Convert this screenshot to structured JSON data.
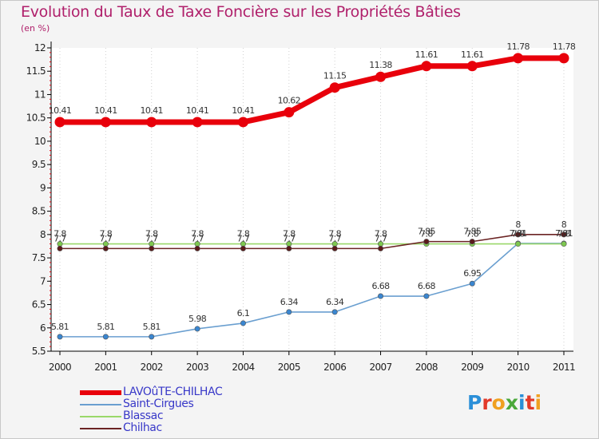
{
  "title": "Evolution du Taux de Taxe Foncière sur les Propriétés Bâties",
  "subtitle": "(en %)",
  "logo": {
    "text": "Proxiti",
    "colors": [
      "#2b8fd8",
      "#e23a2a",
      "#f0a020",
      "#4aa83a",
      "#2b8fd8",
      "#e23a2a",
      "#f0a020"
    ]
  },
  "chart_data": {
    "type": "line",
    "title": "Evolution du Taux de Taxe Foncière sur les Propriétés Bâties",
    "ylabel": "(en %)",
    "xlabel": "",
    "ylim": [
      5.5,
      12
    ],
    "yticks": [
      5.5,
      6,
      6.5,
      7,
      7.5,
      8,
      8.5,
      9,
      9.5,
      10,
      10.5,
      11,
      11.5,
      12
    ],
    "ytick_labels": [
      "5.5",
      "6",
      "6.5",
      "7",
      "7.5",
      "8",
      "8.5",
      "9",
      "9.5",
      "10",
      "10.5",
      "11",
      "11.5",
      "12"
    ],
    "categories": [
      "2000",
      "2001",
      "2002",
      "2003",
      "2004",
      "2005",
      "2006",
      "2007",
      "2008",
      "2009",
      "2010",
      "2011"
    ],
    "legend_position": "bottom-left",
    "series": [
      {
        "name": "LAVOûTE-CHILHAC",
        "color": "#e8000b",
        "fill": "#e8000b",
        "values": [
          10.41,
          10.41,
          10.41,
          10.41,
          10.41,
          10.62,
          11.15,
          11.38,
          11.61,
          11.61,
          11.78,
          11.78
        ],
        "labels": [
          "10.41",
          "10.41",
          "10.41",
          "10.41",
          "10.41",
          "10.62",
          "11.15",
          "11.38",
          "11.61",
          "11.61",
          "11.78",
          "11.78"
        ]
      },
      {
        "name": "Saint-Cirgues",
        "color": "#6a9fd0",
        "fill": "#3a86d0",
        "values": [
          5.81,
          5.81,
          5.81,
          5.98,
          6.1,
          6.34,
          6.34,
          6.68,
          6.68,
          6.95,
          7.81,
          7.81
        ],
        "labels": [
          "5.81",
          "5.81",
          "5.81",
          "5.98",
          "6.1",
          "6.34",
          "6.34",
          "6.68",
          "6.68",
          "6.95",
          "7.81",
          "7.81"
        ]
      },
      {
        "name": "Blassac",
        "color": "#9ad86a",
        "fill": "#7ec850",
        "values": [
          7.8,
          7.8,
          7.8,
          7.8,
          7.8,
          7.8,
          7.8,
          7.8,
          7.8,
          7.8,
          7.8,
          7.8
        ],
        "labels": [
          "7.8",
          "7.8",
          "7.8",
          "7.8",
          "7.8",
          "7.8",
          "7.8",
          "7.8",
          "7.8",
          "7.8",
          "7.8",
          "7.8"
        ]
      },
      {
        "name": "Chilhac",
        "color": "#6b2424",
        "fill": "#5a1a1a",
        "values": [
          7.7,
          7.7,
          7.7,
          7.7,
          7.7,
          7.7,
          7.7,
          7.7,
          7.85,
          7.85,
          8,
          8
        ],
        "labels": [
          "7.7",
          "7.7",
          "7.7",
          "7.7",
          "7.7",
          "7.7",
          "7.7",
          "7.7",
          "7.85",
          "7.85",
          "8",
          "8"
        ]
      }
    ]
  }
}
